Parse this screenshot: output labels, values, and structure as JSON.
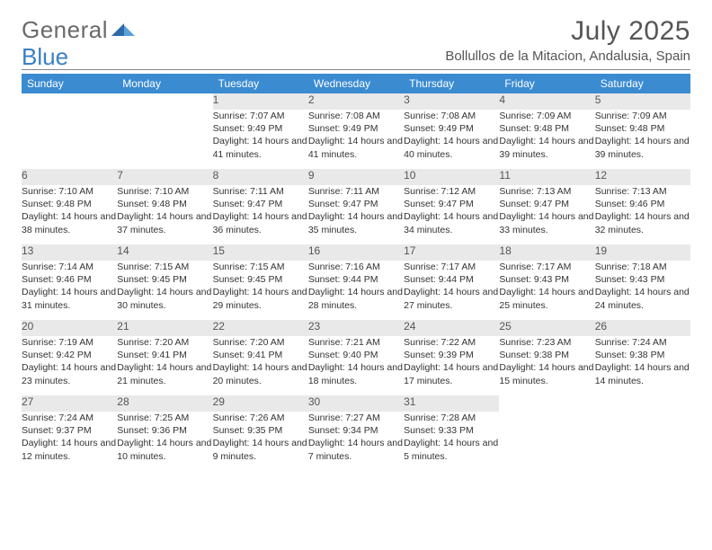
{
  "brand": {
    "part1": "General",
    "part2": "Blue",
    "accent_color": "#3b8bd1",
    "text_color": "#6a6a6a"
  },
  "title": "July 2025",
  "location": "Bollullos de la Mitacion, Andalusia, Spain",
  "colors": {
    "header_bg": "#3b8bd1",
    "header_text": "#ffffff",
    "daynum_bg": "#e9e9e9",
    "page_bg": "#ffffff",
    "body_text": "#333333",
    "muted_text": "#555555",
    "rule": "#888888"
  },
  "typography": {
    "title_size": 30,
    "location_size": 15,
    "header_size": 12,
    "cell_size": 10.5
  },
  "day_headers": [
    "Sunday",
    "Monday",
    "Tuesday",
    "Wednesday",
    "Thursday",
    "Friday",
    "Saturday"
  ],
  "weeks": [
    {
      "numbers": [
        "",
        "",
        "1",
        "2",
        "3",
        "4",
        "5"
      ],
      "details": [
        "",
        "",
        "Sunrise: 7:07 AM\nSunset: 9:49 PM\nDaylight: 14 hours and 41 minutes.",
        "Sunrise: 7:08 AM\nSunset: 9:49 PM\nDaylight: 14 hours and 41 minutes.",
        "Sunrise: 7:08 AM\nSunset: 9:49 PM\nDaylight: 14 hours and 40 minutes.",
        "Sunrise: 7:09 AM\nSunset: 9:48 PM\nDaylight: 14 hours and 39 minutes.",
        "Sunrise: 7:09 AM\nSunset: 9:48 PM\nDaylight: 14 hours and 39 minutes."
      ]
    },
    {
      "numbers": [
        "6",
        "7",
        "8",
        "9",
        "10",
        "11",
        "12"
      ],
      "details": [
        "Sunrise: 7:10 AM\nSunset: 9:48 PM\nDaylight: 14 hours and 38 minutes.",
        "Sunrise: 7:10 AM\nSunset: 9:48 PM\nDaylight: 14 hours and 37 minutes.",
        "Sunrise: 7:11 AM\nSunset: 9:47 PM\nDaylight: 14 hours and 36 minutes.",
        "Sunrise: 7:11 AM\nSunset: 9:47 PM\nDaylight: 14 hours and 35 minutes.",
        "Sunrise: 7:12 AM\nSunset: 9:47 PM\nDaylight: 14 hours and 34 minutes.",
        "Sunrise: 7:13 AM\nSunset: 9:47 PM\nDaylight: 14 hours and 33 minutes.",
        "Sunrise: 7:13 AM\nSunset: 9:46 PM\nDaylight: 14 hours and 32 minutes."
      ]
    },
    {
      "numbers": [
        "13",
        "14",
        "15",
        "16",
        "17",
        "18",
        "19"
      ],
      "details": [
        "Sunrise: 7:14 AM\nSunset: 9:46 PM\nDaylight: 14 hours and 31 minutes.",
        "Sunrise: 7:15 AM\nSunset: 9:45 PM\nDaylight: 14 hours and 30 minutes.",
        "Sunrise: 7:15 AM\nSunset: 9:45 PM\nDaylight: 14 hours and 29 minutes.",
        "Sunrise: 7:16 AM\nSunset: 9:44 PM\nDaylight: 14 hours and 28 minutes.",
        "Sunrise: 7:17 AM\nSunset: 9:44 PM\nDaylight: 14 hours and 27 minutes.",
        "Sunrise: 7:17 AM\nSunset: 9:43 PM\nDaylight: 14 hours and 25 minutes.",
        "Sunrise: 7:18 AM\nSunset: 9:43 PM\nDaylight: 14 hours and 24 minutes."
      ]
    },
    {
      "numbers": [
        "20",
        "21",
        "22",
        "23",
        "24",
        "25",
        "26"
      ],
      "details": [
        "Sunrise: 7:19 AM\nSunset: 9:42 PM\nDaylight: 14 hours and 23 minutes.",
        "Sunrise: 7:20 AM\nSunset: 9:41 PM\nDaylight: 14 hours and 21 minutes.",
        "Sunrise: 7:20 AM\nSunset: 9:41 PM\nDaylight: 14 hours and 20 minutes.",
        "Sunrise: 7:21 AM\nSunset: 9:40 PM\nDaylight: 14 hours and 18 minutes.",
        "Sunrise: 7:22 AM\nSunset: 9:39 PM\nDaylight: 14 hours and 17 minutes.",
        "Sunrise: 7:23 AM\nSunset: 9:38 PM\nDaylight: 14 hours and 15 minutes.",
        "Sunrise: 7:24 AM\nSunset: 9:38 PM\nDaylight: 14 hours and 14 minutes."
      ]
    },
    {
      "numbers": [
        "27",
        "28",
        "29",
        "30",
        "31",
        "",
        ""
      ],
      "details": [
        "Sunrise: 7:24 AM\nSunset: 9:37 PM\nDaylight: 14 hours and 12 minutes.",
        "Sunrise: 7:25 AM\nSunset: 9:36 PM\nDaylight: 14 hours and 10 minutes.",
        "Sunrise: 7:26 AM\nSunset: 9:35 PM\nDaylight: 14 hours and 9 minutes.",
        "Sunrise: 7:27 AM\nSunset: 9:34 PM\nDaylight: 14 hours and 7 minutes.",
        "Sunrise: 7:28 AM\nSunset: 9:33 PM\nDaylight: 14 hours and 5 minutes.",
        "",
        ""
      ]
    }
  ]
}
